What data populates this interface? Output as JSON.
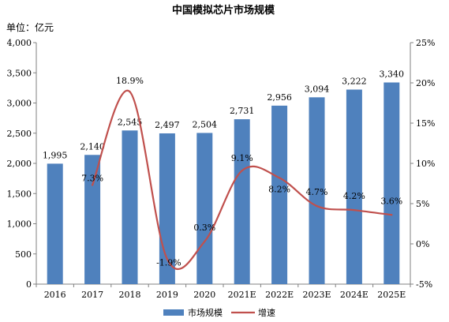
{
  "chart_data": {
    "type": "bar",
    "title": "中国模拟芯片市场规模",
    "unit_label": "单位：亿元",
    "categories": [
      "2016",
      "2017",
      "2018",
      "2019",
      "2020",
      "2021E",
      "2022E",
      "2023E",
      "2024E",
      "2025E"
    ],
    "series": [
      {
        "name": "市场规模",
        "type": "bar",
        "axis": "left",
        "color": "#4f81bd",
        "values": [
          1995,
          2140,
          2545,
          2497,
          2504,
          2731,
          2956,
          3094,
          3222,
          3340
        ],
        "labels": [
          "1,995",
          "2,140",
          "2,545",
          "2,497",
          "2,504",
          "2,731",
          "2,956",
          "3,094",
          "3,222",
          "3,340"
        ]
      },
      {
        "name": "增速",
        "type": "line",
        "axis": "right",
        "color": "#c0504d",
        "smooth": true,
        "values": [
          null,
          7.3,
          18.9,
          -1.9,
          0.3,
          9.1,
          8.2,
          4.7,
          4.2,
          3.6
        ],
        "labels": [
          "",
          "7.3%",
          "18.9%",
          "-1.9%",
          "0.3%",
          "9.1%",
          "8.2%",
          "4.7%",
          "4.2%",
          "3.6%"
        ]
      }
    ],
    "y_left": {
      "min": 0,
      "max": 4000,
      "ticks": [
        0,
        500,
        1000,
        1500,
        2000,
        2500,
        3000,
        3500,
        4000
      ],
      "tick_labels": [
        "0",
        "500",
        "1,000",
        "1,500",
        "2,000",
        "2,500",
        "3,000",
        "3,500",
        "4,000"
      ]
    },
    "y_right": {
      "min": -5,
      "max": 25,
      "ticks": [
        -5,
        0,
        5,
        10,
        15,
        20,
        25
      ],
      "tick_labels": [
        "-5%",
        "0%",
        "5%",
        "10%",
        "15%",
        "20%",
        "25%"
      ]
    },
    "grid": false,
    "legend_position": "bottom"
  }
}
